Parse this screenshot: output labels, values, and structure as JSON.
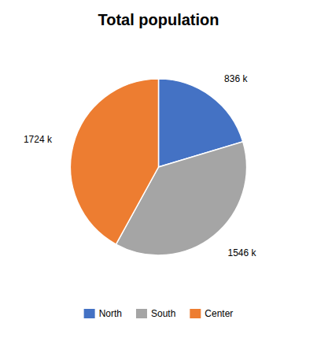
{
  "chart_data": {
    "type": "pie",
    "title": "Total population",
    "categories": [
      "North",
      "South",
      "Center"
    ],
    "values": [
      836,
      1546,
      1724
    ],
    "value_labels": [
      "836 k",
      "1546 k",
      "1724 k"
    ],
    "colors": [
      "#4472C4",
      "#A5A5A5",
      "#ED7D31"
    ],
    "data_labels": true,
    "legend": "bottom"
  }
}
